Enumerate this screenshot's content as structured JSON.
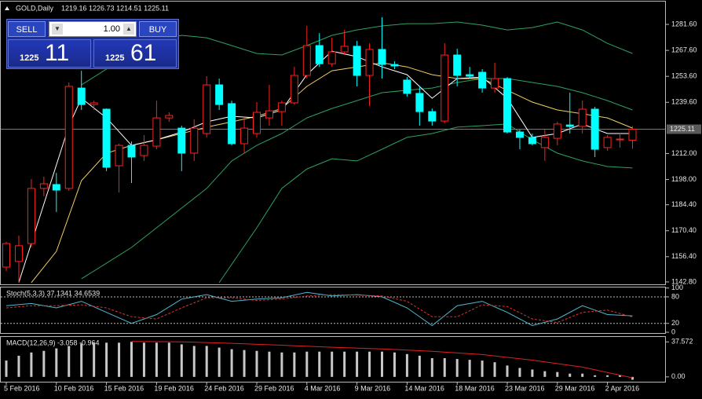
{
  "header": {
    "symbol": "GOLD,Daily",
    "ohlc": "1219.16 1226.73 1214.51 1225.11"
  },
  "trade_panel": {
    "sell": "SELL",
    "buy": "BUY",
    "lots": "1.00",
    "bid_big": "1225",
    "bid_small": "11",
    "ask_big": "1225",
    "ask_small": "61"
  },
  "chart_data": [
    {
      "type": "candlestick",
      "up_color": "#ff2020",
      "down_color": "#00ffff",
      "last_price": 1225.11,
      "categories": [
        "5 Feb 2016",
        null,
        null,
        null,
        "10 Feb 2016",
        null,
        null,
        null,
        "15 Feb 2016",
        null,
        null,
        null,
        "19 Feb 2016",
        null,
        null,
        null,
        "24 Feb 2016",
        null,
        null,
        null,
        "29 Feb 2016",
        null,
        null,
        null,
        "4 Mar 2016",
        null,
        null,
        null,
        "9 Mar 2016",
        null,
        null,
        null,
        "14 Mar 2016",
        null,
        null,
        null,
        "18 Mar 2016",
        null,
        null,
        null,
        "23 Mar 2016",
        null,
        null,
        null,
        "29 Mar 2016",
        null,
        null,
        null,
        "2 Apr 2016",
        null,
        null
      ],
      "open": [
        1150.8,
        1153.8,
        1163.5,
        1193.2,
        1195.3,
        1193.2,
        1247.3,
        1238.4,
        1235.9,
        1205.4,
        1216.4,
        1210.9,
        1216.0,
        1231.2,
        1225.7,
        1212.2,
        1222.8,
        1249.0,
        1238.9,
        1217.3,
        1222.8,
        1231.2,
        1234.6,
        1239.3,
        1254.1,
        1270.2,
        1260.4,
        1266.8,
        1269.8,
        1254.1,
        1268.1,
        1260.0,
        1251.6,
        1244.4,
        1234.6,
        1229.5,
        1265.1,
        1254.5,
        1255.8,
        1247.3,
        1252.4,
        1223.6,
        1220.7,
        1215.2,
        1220.2,
        1227.4,
        1226.6,
        1235.9,
        1215.2,
        1219.4,
        1219.16
      ],
      "high": [
        1164.4,
        1167.8,
        1198.2,
        1199.5,
        1201.6,
        1250.3,
        1256.6,
        1240.5,
        1236.3,
        1217.3,
        1218.5,
        1221.9,
        1240.5,
        1234.2,
        1227.0,
        1230.4,
        1253.7,
        1252.4,
        1240.5,
        1231.2,
        1239.7,
        1249.0,
        1240.5,
        1258.7,
        1280.8,
        1276.9,
        1274.4,
        1278.6,
        1272.7,
        1271.4,
        1285.4,
        1261.7,
        1253.2,
        1248.2,
        1236.3,
        1271.4,
        1268.5,
        1258.7,
        1257.5,
        1260.9,
        1253.2,
        1224.9,
        1222.8,
        1224.9,
        1229.1,
        1244.8,
        1240.5,
        1237.2,
        1221.9,
        1222.8,
        1226.73
      ],
      "low": [
        1148.7,
        1142.4,
        1161.4,
        1188.9,
        1180.5,
        1191.9,
        1235.5,
        1235.5,
        1202.5,
        1191.0,
        1196.1,
        1208.0,
        1214.3,
        1229.1,
        1202.5,
        1208.0,
        1220.7,
        1235.5,
        1216.4,
        1212.2,
        1220.7,
        1227.0,
        1227.0,
        1238.4,
        1252.4,
        1258.7,
        1258.7,
        1265.1,
        1248.2,
        1237.6,
        1252.4,
        1257.5,
        1242.7,
        1227.0,
        1227.0,
        1228.3,
        1248.2,
        1252.4,
        1244.8,
        1244.8,
        1222.8,
        1214.3,
        1216.4,
        1208.0,
        1216.4,
        1222.8,
        1222.8,
        1210.1,
        1213.5,
        1215.2,
        1214.51
      ],
      "close": [
        1163.5,
        1162.3,
        1193.2,
        1195.7,
        1192.3,
        1248.2,
        1238.4,
        1239.3,
        1204.6,
        1216.4,
        1210.1,
        1216.4,
        1231.2,
        1232.5,
        1212.2,
        1225.7,
        1249.0,
        1238.4,
        1217.3,
        1225.7,
        1234.2,
        1235.0,
        1239.3,
        1254.1,
        1270.2,
        1260.4,
        1266.8,
        1269.8,
        1254.1,
        1268.1,
        1260.0,
        1259.2,
        1244.4,
        1234.6,
        1229.5,
        1265.1,
        1254.1,
        1253.7,
        1247.3,
        1252.4,
        1223.6,
        1220.7,
        1217.3,
        1220.7,
        1227.9,
        1226.6,
        1235.9,
        1214.3,
        1220.7,
        1219.8,
        1225.11
      ],
      "series": [
        {
          "color": "#2fa060",
          "x": [
            6,
            8,
            10,
            12,
            14,
            16,
            18,
            20,
            22,
            24,
            26,
            28,
            30,
            32,
            34,
            36,
            38,
            40,
            42,
            44,
            46,
            48,
            50
          ],
          "values": [
            1249.0,
            1257.5,
            1265.1,
            1272.7,
            1275.7,
            1274.4,
            1270.2,
            1265.9,
            1265.1,
            1270.2,
            1275.7,
            1278.6,
            1280.8,
            1282.0,
            1282.0,
            1282.9,
            1281.2,
            1278.6,
            1279.9,
            1282.9,
            1278.6,
            1271.4,
            1265.9
          ]
        },
        {
          "color": "#2fa060",
          "x": [
            6,
            8,
            10,
            12,
            14,
            16,
            18,
            20,
            22,
            24,
            26,
            28,
            30,
            32,
            34,
            36,
            38,
            40,
            42,
            44,
            46,
            48,
            50
          ],
          "values": [
            1144.5,
            1152.9,
            1161.4,
            1172.0,
            1182.6,
            1193.2,
            1208.0,
            1216.4,
            1222.8,
            1231.2,
            1236.3,
            1240.5,
            1244.8,
            1246.1,
            1247.3,
            1250.3,
            1252.4,
            1252.4,
            1250.3,
            1248.2,
            1244.8,
            1240.5,
            1235.5
          ]
        },
        {
          "color": "#2fa060",
          "x": [
            17,
            20,
            22,
            24,
            26,
            28,
            30,
            32,
            34,
            36,
            38,
            40,
            42,
            44,
            46,
            48,
            50
          ],
          "values": [
            1142.4,
            1172.0,
            1193.2,
            1203.7,
            1209.2,
            1208.0,
            1214.3,
            1220.7,
            1222.8,
            1226.2,
            1227.0,
            1227.9,
            1219.4,
            1212.2,
            1208.0,
            1205.0,
            1204.2
          ]
        },
        {
          "color": "#f0d060",
          "x": [
            2,
            4,
            6,
            8,
            10,
            12,
            14,
            16,
            18,
            20,
            22,
            24,
            26,
            28,
            30,
            32,
            34,
            36,
            38,
            40,
            42,
            44,
            46,
            48,
            50
          ],
          "values": [
            1142.4,
            1159.3,
            1197.4,
            1212.2,
            1216.4,
            1219.4,
            1222.8,
            1226.2,
            1229.1,
            1232.1,
            1236.3,
            1248.2,
            1256.6,
            1258.7,
            1260.9,
            1258.7,
            1254.5,
            1252.4,
            1252.4,
            1246.1,
            1239.7,
            1235.5,
            1233.4,
            1231.2,
            1225.7
          ]
        },
        {
          "color": "#ffffff",
          "x": [
            1,
            3,
            5,
            6,
            8,
            10,
            12,
            14,
            16,
            18,
            20,
            22,
            24,
            26,
            28,
            30,
            32,
            34,
            36,
            38,
            40,
            42,
            44,
            46,
            48,
            50
          ],
          "values": [
            1142.4,
            1184.7,
            1227.0,
            1241.8,
            1231.2,
            1216.4,
            1219.4,
            1223.6,
            1229.1,
            1232.1,
            1231.2,
            1235.5,
            1254.5,
            1267.2,
            1264.2,
            1258.7,
            1254.5,
            1241.8,
            1252.4,
            1253.2,
            1241.8,
            1220.7,
            1222.8,
            1227.9,
            1222.8,
            1222.8
          ]
        }
      ],
      "ylim": [
        1141.5,
        1288.4
      ],
      "yticks": [
        {
          "value": 1281.6,
          "label": "1281.60"
        },
        {
          "value": 1267.6,
          "label": "1267.60"
        },
        {
          "value": 1253.6,
          "label": "1253.60"
        },
        {
          "value": 1239.6,
          "label": "1239.60"
        },
        {
          "value": 1212,
          "label": "1212.00"
        },
        {
          "value": 1198,
          "label": "1198.00"
        },
        {
          "value": 1184.4,
          "label": "1184.40"
        },
        {
          "value": 1170.4,
          "label": "1170.40"
        },
        {
          "value": 1156.4,
          "label": "1156.40"
        },
        {
          "value": 1142.8,
          "label": "1142.80"
        }
      ]
    },
    {
      "type": "line",
      "title": "Stoch(5,3,3) 37.1341 34.6539",
      "ylim": [
        -1.8,
        103
      ],
      "yticks": [
        100,
        80,
        20,
        0
      ],
      "levels": [
        80,
        20
      ],
      "series": [
        {
          "color": "#4fb8d0",
          "x": [
            0,
            2,
            4,
            6,
            8,
            10,
            12,
            14,
            16,
            18,
            20,
            22,
            24,
            26,
            28,
            30,
            32,
            34,
            36,
            38,
            40,
            42,
            44,
            46,
            48,
            50
          ],
          "values": [
            60,
            65,
            55,
            70,
            45,
            20,
            40,
            75,
            85,
            70,
            75,
            78,
            90,
            82,
            85,
            80,
            55,
            15,
            60,
            70,
            45,
            15,
            30,
            60,
            40,
            37.1
          ]
        },
        {
          "color": "#e03030",
          "dashed": true,
          "x": [
            0,
            2,
            4,
            6,
            8,
            10,
            12,
            14,
            16,
            18,
            20,
            22,
            24,
            26,
            28,
            30,
            32,
            34,
            36,
            38,
            40,
            42,
            44,
            46,
            48,
            50
          ],
          "values": [
            55,
            60,
            60,
            62,
            55,
            35,
            30,
            55,
            78,
            78,
            72,
            75,
            82,
            85,
            84,
            82,
            70,
            35,
            35,
            62,
            58,
            30,
            22,
            45,
            50,
            34.7
          ]
        }
      ]
    },
    {
      "type": "bar",
      "title": "MACD(12,26,9) -3.058 -0.964",
      "color": "#c8c8c8",
      "ylim": [
        -5.2,
        43.7
      ],
      "yticks": [
        37.572,
        {
          "value": 0,
          "label": "0.00"
        }
      ],
      "values": [
        17.5,
        22.7,
        26.2,
        27.9,
        30.6,
        33.2,
        35.8,
        36.7,
        36.7,
        36.7,
        37.6,
        36.7,
        36.7,
        36.7,
        34.9,
        33.2,
        33.2,
        31.4,
        29.7,
        28.8,
        27.9,
        27.1,
        26.2,
        26.2,
        27.1,
        27.1,
        27.1,
        27.1,
        27.1,
        27.1,
        27.1,
        26.2,
        24.5,
        22.7,
        20.1,
        20.1,
        19.2,
        18.3,
        17.5,
        15.7,
        12.2,
        9.6,
        7.9,
        6.1,
        5.2,
        3.5,
        3.5,
        1.7,
        1.7,
        1.7,
        -3.058
      ],
      "series": [
        {
          "color": "#e02020",
          "x": [
            10,
            14,
            18,
            22,
            26,
            30,
            34,
            38,
            42,
            46,
            50
          ],
          "values": [
            38.0,
            37.6,
            36.0,
            34.0,
            31.8,
            30.0,
            27.5,
            24.0,
            18.0,
            10.5,
            -0.964
          ]
        }
      ]
    }
  ]
}
